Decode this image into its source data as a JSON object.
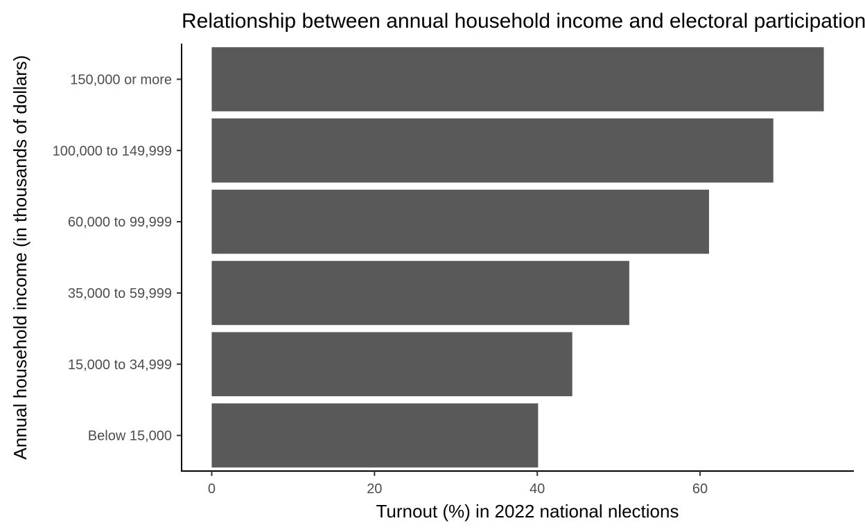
{
  "chart_data": {
    "type": "bar",
    "orientation": "horizontal",
    "title": "Relationship between annual household income and electoral participation",
    "xlabel": "Turnout (%) in 2022 national nlections",
    "ylabel": "Annual household income (in thousands of dollars)",
    "categories": [
      "Below 15,000",
      "15,000 to 34,999",
      "35,000 to 59,999",
      "60,000 to 99,999",
      "100,000 to 149,999",
      "150,000 or more"
    ],
    "values": [
      40.1,
      44.3,
      51.3,
      61.1,
      69.0,
      75.2
    ],
    "xlim": [
      -3.7,
      78.9
    ],
    "xticks": [
      "0",
      "20",
      "40",
      "60"
    ],
    "xtick_values": [
      0,
      20,
      40,
      60
    ],
    "bar_color": "#595959",
    "grid": false,
    "legend": "none"
  }
}
